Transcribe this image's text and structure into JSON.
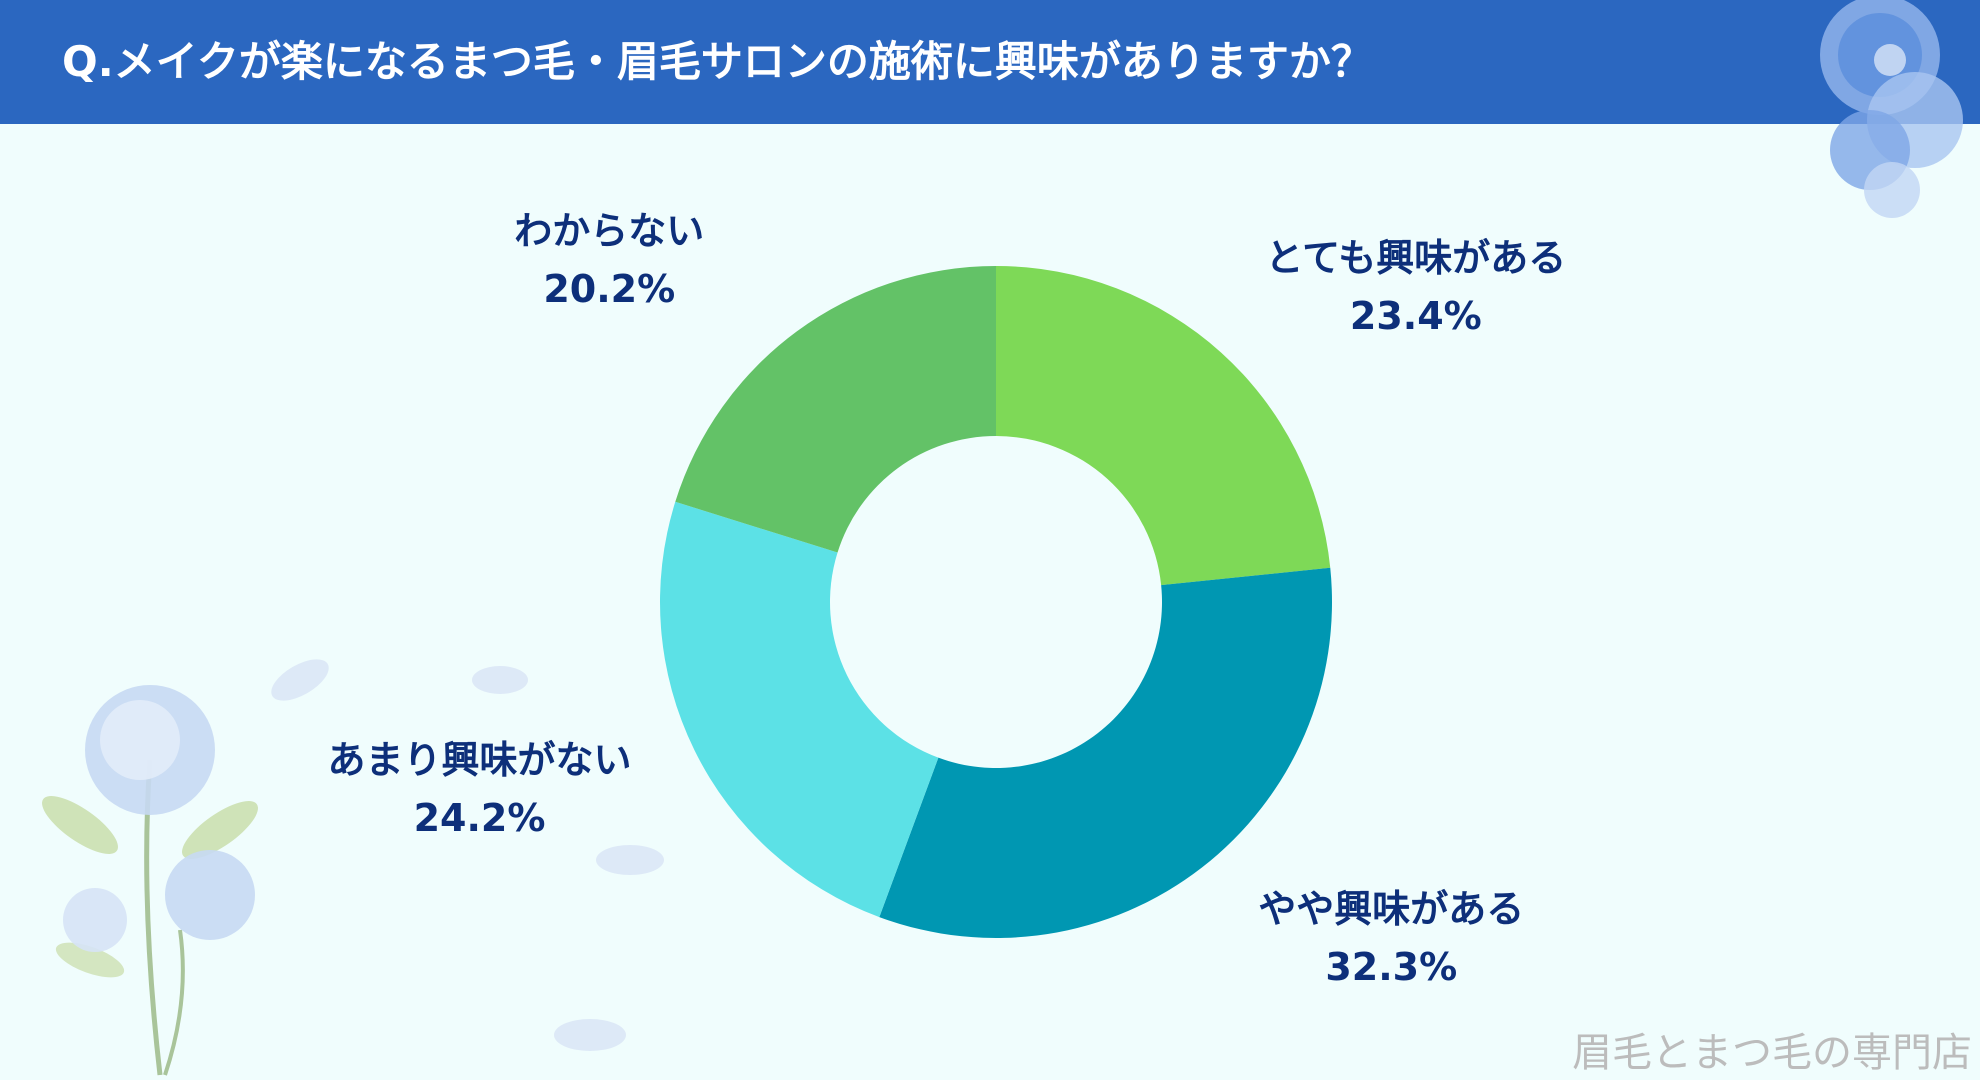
{
  "header": {
    "title": "Q.メイクが楽になるまつ毛・眉毛サロンの施術に興味がありますか？"
  },
  "chart_data": {
    "type": "pie",
    "title": "Q.メイクが楽になるまつ毛・眉毛サロンの施術に興味がありますか？",
    "slices": [
      {
        "label": "とても興味がある",
        "value": 23.4,
        "value_label": "23.4%",
        "color": "#7ed957"
      },
      {
        "label": "やや興味がある",
        "value": 32.3,
        "value_label": "32.3%",
        "color": "#0097b2"
      },
      {
        "label": "あまり興味がない",
        "value": 24.2,
        "value_label": "24.2%",
        "color": "#5ce1e6"
      },
      {
        "label": "わからない",
        "value": 20.2,
        "value_label": "20.2%",
        "color": "#63c267"
      }
    ],
    "donut": true,
    "legend": "none"
  },
  "watermark": "眉毛とまつ毛の専門店"
}
